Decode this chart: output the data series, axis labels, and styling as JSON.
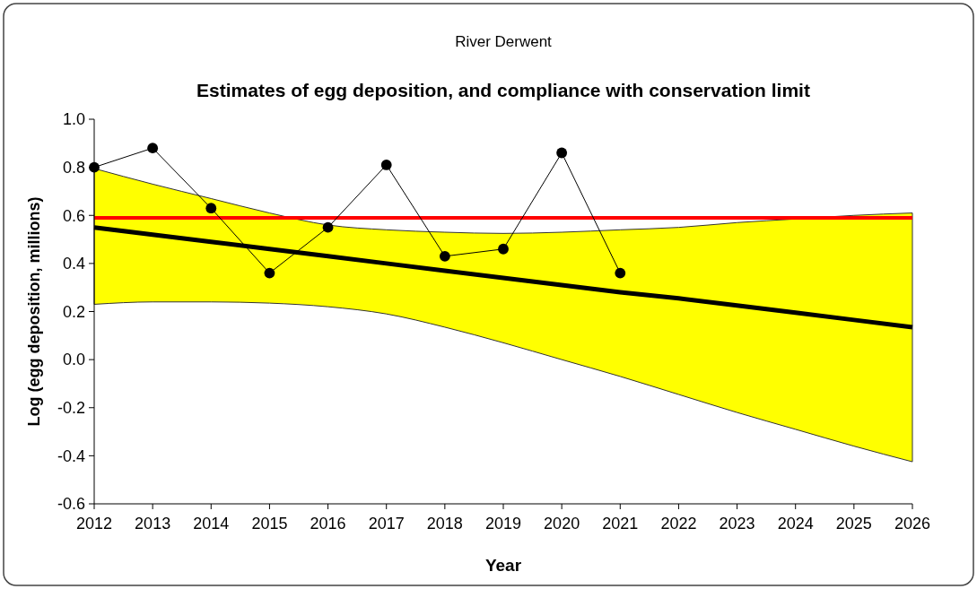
{
  "chart_data": {
    "type": "line",
    "title": "River Derwent",
    "subtitle": "Estimates of egg deposition, and compliance with conservation limit",
    "xlabel": "Year",
    "ylabel": "Log (egg deposition,  millions)",
    "xlim": [
      2012,
      2026
    ],
    "xticks": [
      2012,
      2013,
      2014,
      2015,
      2016,
      2017,
      2018,
      2019,
      2020,
      2021,
      2022,
      2023,
      2024,
      2025,
      2026
    ],
    "ylim": [
      -0.6,
      1.0
    ],
    "yticks": [
      {
        "value": -0.6,
        "label": "-0.6"
      },
      {
        "value": -0.4,
        "label": "-0.4"
      },
      {
        "value": -0.2,
        "label": "-0.2"
      },
      {
        "value": 0,
        "label": "0.0"
      },
      {
        "value": 0.2,
        "label": "0.2"
      },
      {
        "value": 0.4,
        "label": "0.4"
      },
      {
        "value": 0.6,
        "label": "0.6"
      },
      {
        "value": 0.8,
        "label": "0.8"
      },
      {
        "value": 1.0,
        "label": "1.0"
      }
    ],
    "grid": false,
    "series": [
      {
        "color": "#000000",
        "marker": "none",
        "x": [
          2012,
          2013,
          2014,
          2015,
          2016,
          2017,
          2018,
          2019,
          2020,
          2021,
          2022,
          2023,
          2024,
          2025,
          2026
        ],
        "values": [
          0.55,
          0.52,
          0.49,
          0.46,
          0.43,
          0.4,
          0.37,
          0.34,
          0.31,
          0.28,
          0.255,
          0.225,
          0.195,
          0.165,
          0.135
        ],
        "lower": [
          0.23,
          0.24,
          0.24,
          0.235,
          0.22,
          0.19,
          0.135,
          0.07,
          0.0,
          -0.07,
          -0.145,
          -0.22,
          -0.29,
          -0.36,
          -0.425
        ],
        "upper": [
          0.795,
          0.73,
          0.67,
          0.61,
          0.56,
          0.54,
          0.53,
          0.525,
          0.53,
          0.54,
          0.55,
          0.57,
          0.585,
          0.6,
          0.61
        ]
      },
      {
        "color": "#000000",
        "marker": "circle",
        "x": [
          2012,
          2013,
          2014,
          2015,
          2016,
          2017,
          2018,
          2019,
          2020,
          2021
        ],
        "values": [
          0.8,
          0.88,
          0.63,
          0.36,
          0.55,
          0.81,
          0.43,
          0.46,
          0.86,
          0.36
        ]
      }
    ],
    "ref_lines": [
      {
        "axis": "y",
        "value": 0.59,
        "color": "#ff0000"
      }
    ]
  }
}
